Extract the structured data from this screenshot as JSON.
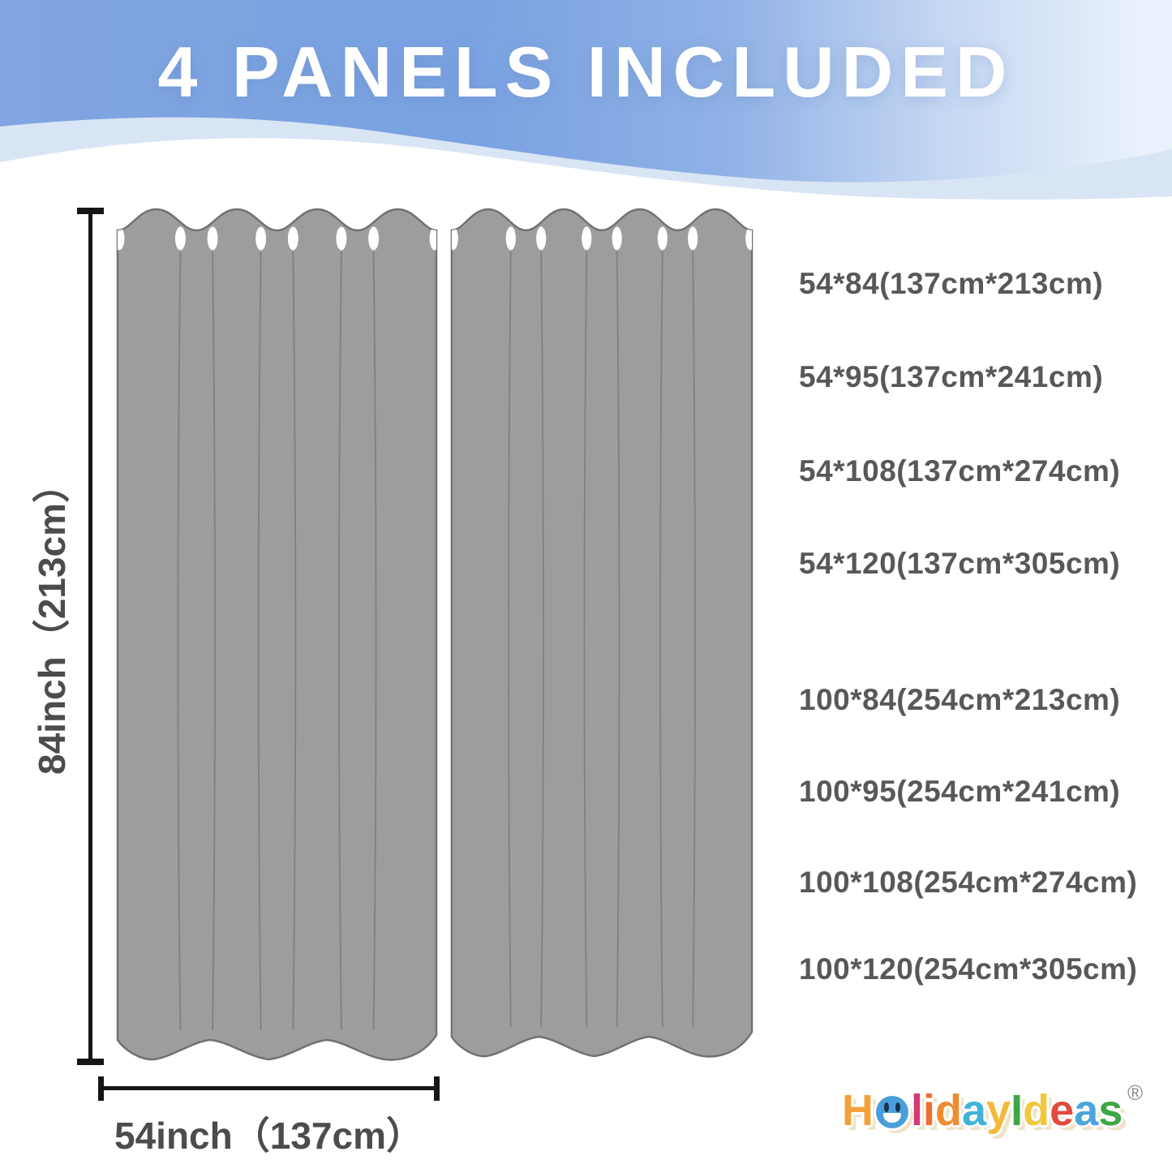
{
  "banner": {
    "title": "4 PANELS INCLUDED"
  },
  "dimensions": {
    "height_label": "84inch（213cm）",
    "width_label": "54inch（137cm）"
  },
  "sizes": {
    "group1": [
      "54*84(137cm*213cm)",
      "54*95(137cm*241cm)",
      "54*108(137cm*274cm)",
      "54*120(137cm*305cm)"
    ],
    "group2": [
      "100*84(254cm*213cm)",
      "100*95(254cm*241cm)",
      "100*108(254cm*274cm)",
      "100*120(254cm*305cm)"
    ]
  },
  "logo": {
    "name": "HolidayIdeas",
    "registered": "®",
    "letters": [
      {
        "ch": "H",
        "color": "#F4A13C"
      },
      {
        "ch": "o",
        "color": "#4B9EDB",
        "face": true
      },
      {
        "ch": "l",
        "color": "#D33A74"
      },
      {
        "ch": "i",
        "color": "#ED6F2F"
      },
      {
        "ch": "d",
        "color": "#EE8C2F"
      },
      {
        "ch": "a",
        "color": "#3FB4D8"
      },
      {
        "ch": "y",
        "color": "#F4B93C"
      },
      {
        "ch": "I",
        "color": "#3FA648"
      },
      {
        "ch": "d",
        "color": "#F1C73E"
      },
      {
        "ch": "e",
        "color": "#E04A3F"
      },
      {
        "ch": "a",
        "color": "#4BA4DC"
      },
      {
        "ch": "s",
        "color": "#3FA648"
      }
    ]
  },
  "colors": {
    "banner_blue": "#7aa2e1",
    "panel_gray": "#9d9d9d",
    "panel_outline": "#717171",
    "dimension_black": "#161616",
    "label_gray": "#4c4c4e",
    "size_text_gray": "#58585a"
  }
}
